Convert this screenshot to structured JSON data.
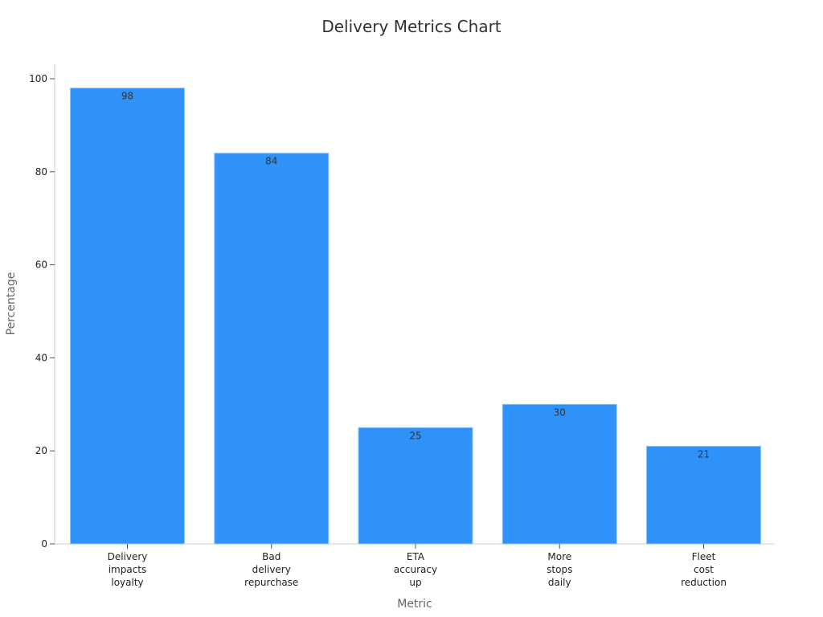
{
  "chart_data": {
    "type": "bar",
    "title": "Delivery Metrics Chart",
    "xlabel": "Metric",
    "ylabel": "Percentage",
    "categories": [
      "Delivery impacts loyalty",
      "Bad delivery repurchase",
      "ETA accuracy up",
      "More stops daily",
      "Fleet cost reduction"
    ],
    "category_lines": [
      [
        "Delivery",
        "impacts",
        "loyalty"
      ],
      [
        "Bad",
        "delivery",
        "repurchase"
      ],
      [
        "ETA",
        "accuracy",
        "up"
      ],
      [
        "More",
        "stops",
        "daily"
      ],
      [
        "Fleet",
        "cost",
        "reduction"
      ]
    ],
    "values": [
      98,
      84,
      25,
      30,
      21
    ],
    "yticks": [
      0,
      20,
      40,
      60,
      80,
      100
    ],
    "ylim": [
      0,
      100
    ],
    "grid": false,
    "legend": "none",
    "bar_color": "#2f92f8",
    "bar_edge_color": "#8ec5ff"
  }
}
